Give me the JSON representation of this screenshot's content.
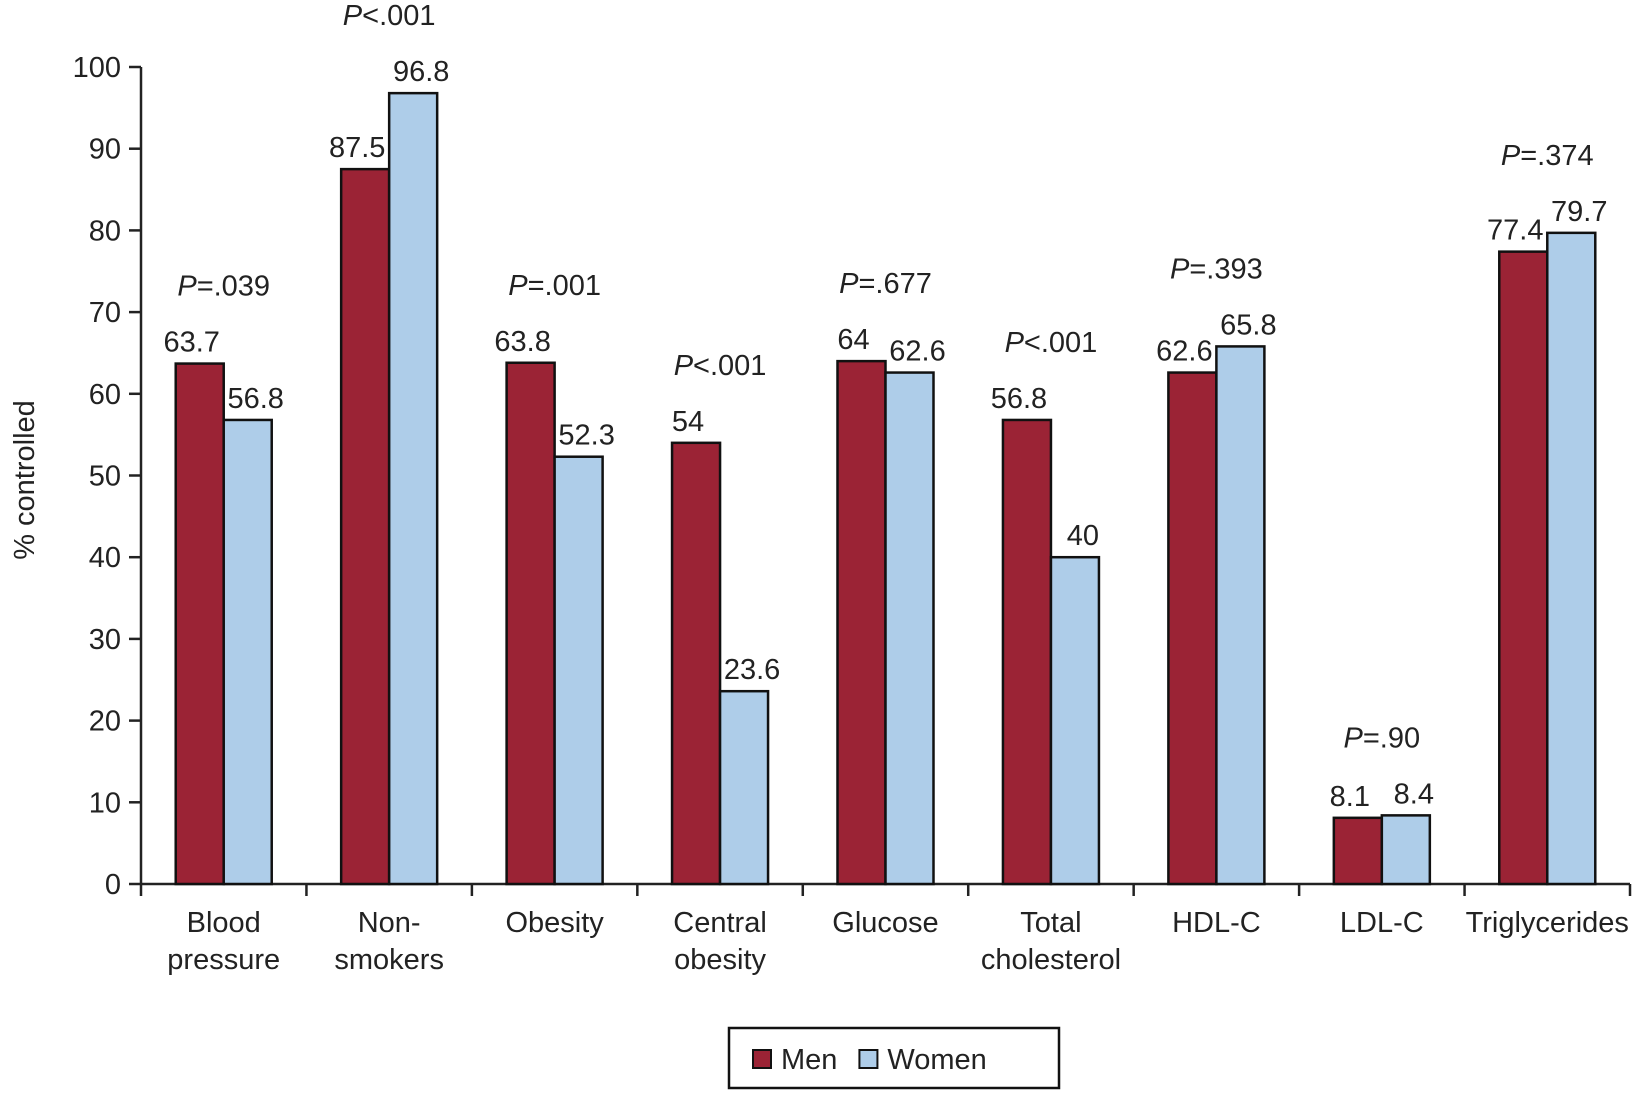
{
  "chart_data": {
    "type": "bar",
    "y_label": "% controlled",
    "categories": [
      [
        "Blood",
        "pressure"
      ],
      [
        "Non-",
        "smokers"
      ],
      [
        "Obesity"
      ],
      [
        "Central",
        "obesity"
      ],
      [
        "Glucose"
      ],
      [
        "Total",
        "cholesterol"
      ],
      [
        "HDL-C"
      ],
      [
        "LDL-C"
      ],
      [
        "Triglycerides"
      ]
    ],
    "series": [
      {
        "name": "Men",
        "color": "#9b2335",
        "values": [
          63.7,
          87.5,
          63.8,
          54,
          64,
          56.8,
          62.6,
          8.1,
          77.4
        ]
      },
      {
        "name": "Women",
        "color": "#aecde9",
        "values": [
          56.8,
          96.8,
          52.3,
          23.6,
          62.6,
          40,
          65.8,
          8.4,
          79.7
        ]
      }
    ],
    "annotations": [
      {
        "symbol": "P",
        "text": "=.039"
      },
      {
        "symbol": "P",
        "text": "<.001"
      },
      {
        "symbol": "P",
        "text": "=.001"
      },
      {
        "symbol": "P",
        "text": "<.001"
      },
      {
        "symbol": "P",
        "text": "=.677"
      },
      {
        "symbol": "P",
        "text": "<.001"
      },
      {
        "symbol": "P",
        "text": "=.393"
      },
      {
        "symbol": "P",
        "text": "=.90"
      },
      {
        "symbol": "P",
        "text": "=.374"
      }
    ],
    "ylim": [
      0,
      100
    ],
    "yticks": [
      0,
      10,
      20,
      30,
      40,
      50,
      60,
      70,
      80,
      90,
      100
    ],
    "legend": "bottom"
  }
}
